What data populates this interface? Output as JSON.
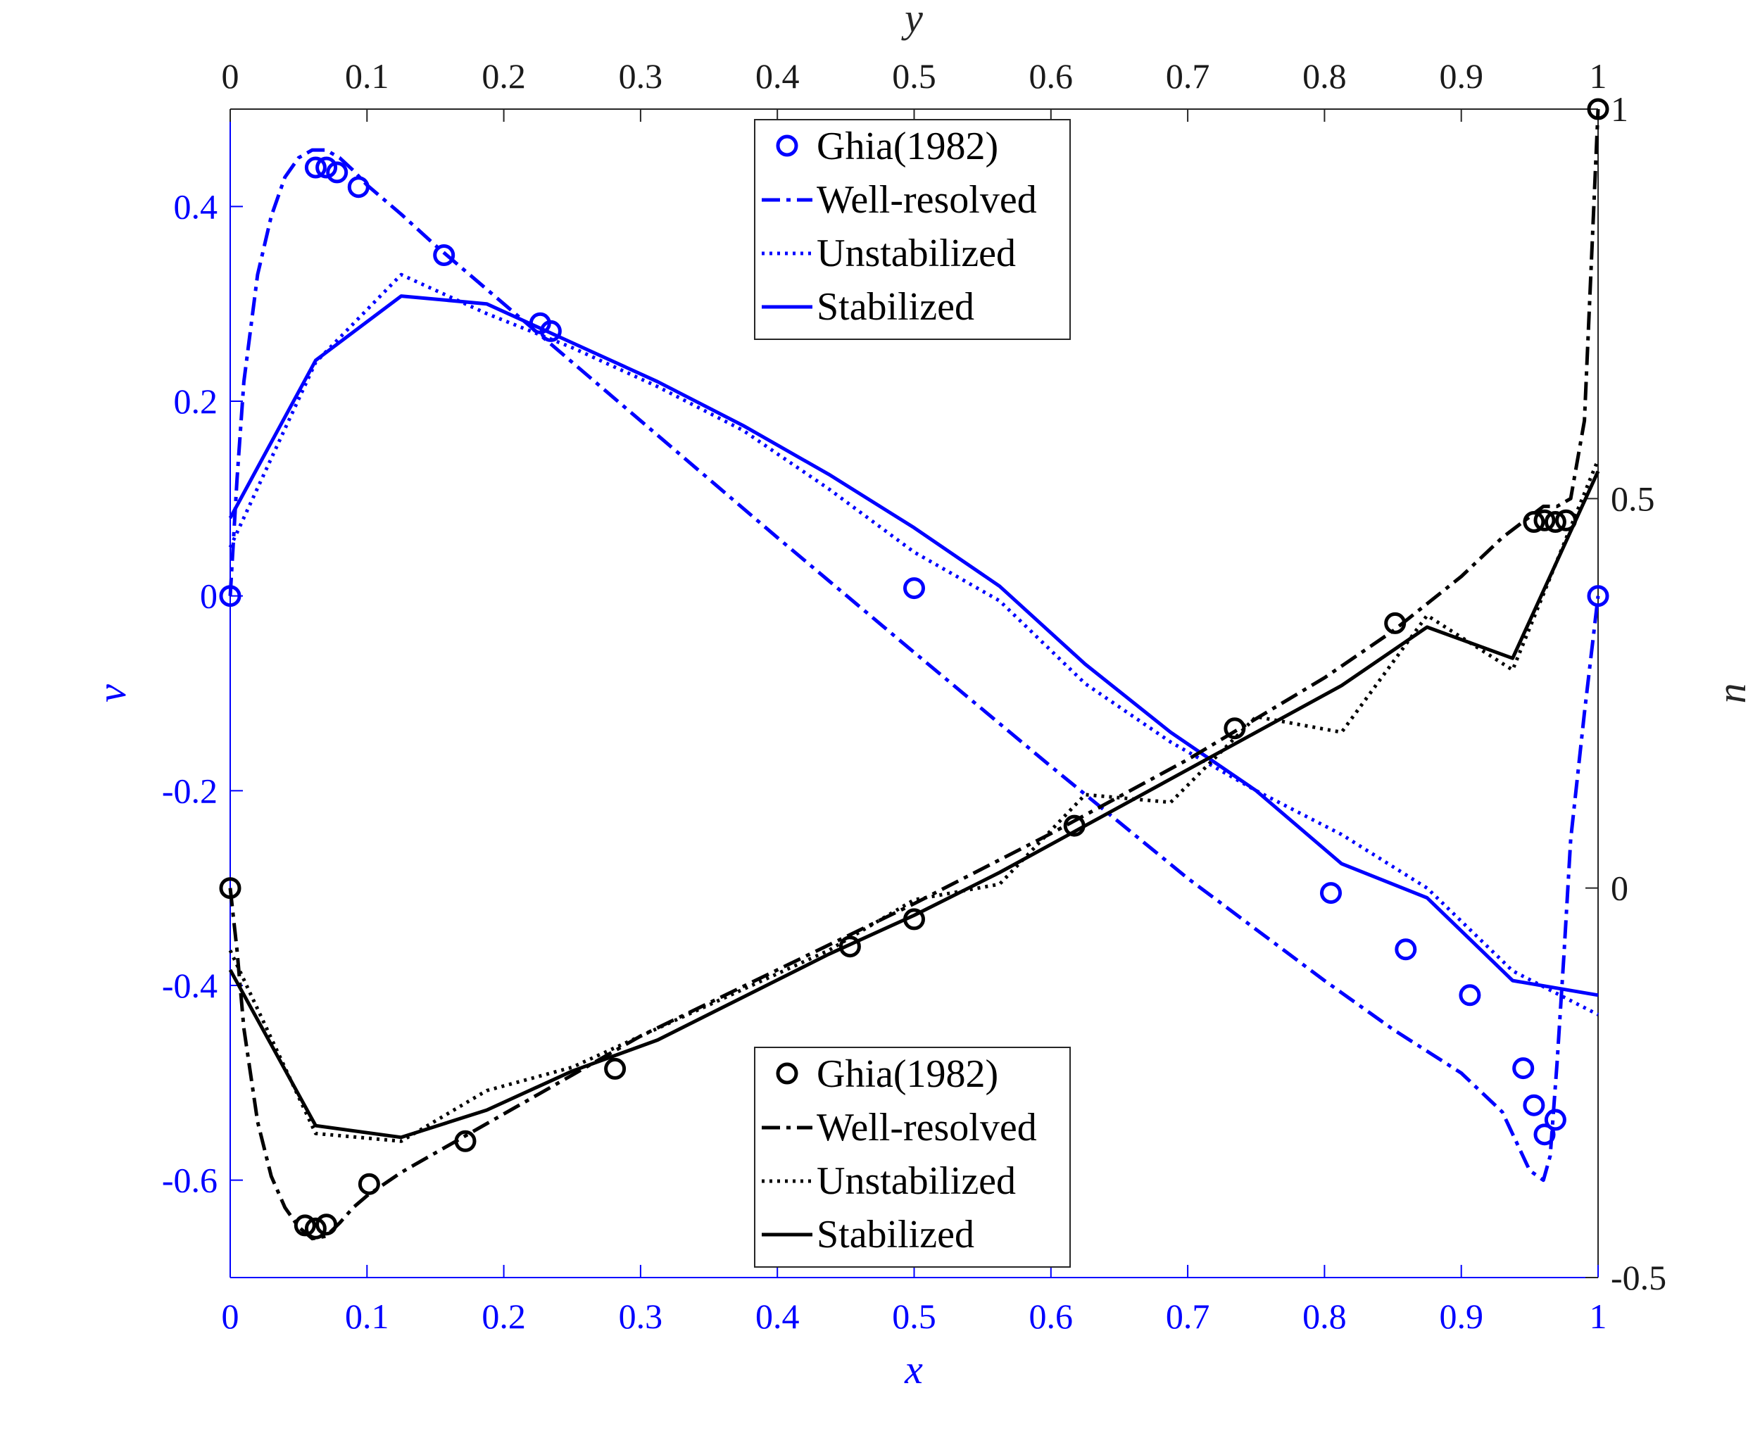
{
  "chart_data": {
    "type": "line",
    "axes": {
      "bottom": {
        "label": "x",
        "lim": [
          0,
          1
        ],
        "ticks": [
          "0",
          "0.1",
          "0.2",
          "0.3",
          "0.4",
          "0.5",
          "0.6",
          "0.7",
          "0.8",
          "0.9",
          "1"
        ],
        "color": "#0000ff"
      },
      "top": {
        "label": "y",
        "lim": [
          0,
          1
        ],
        "ticks": [
          "0",
          "0.1",
          "0.2",
          "0.3",
          "0.4",
          "0.5",
          "0.6",
          "0.7",
          "0.8",
          "0.9",
          "1"
        ],
        "color": "#000000"
      },
      "left": {
        "label": "v",
        "lim": [
          -0.7,
          0.5
        ],
        "tick_values": [
          -0.6,
          -0.4,
          -0.2,
          0,
          0.2,
          0.4
        ],
        "ticks": [
          "-0.6",
          "-0.4",
          "-0.2",
          "0",
          "0.2",
          "0.4"
        ],
        "color": "#0000ff"
      },
      "right": {
        "label": "u",
        "lim": [
          -0.5,
          1
        ],
        "tick_values": [
          -0.5,
          0,
          0.5,
          1
        ],
        "ticks": [
          "-0.5",
          "0",
          "0.5",
          "1"
        ],
        "color": "#000000"
      }
    },
    "grid": false,
    "legends": [
      {
        "placement": "top-center",
        "color": "#0000ff",
        "entries": [
          "Ghia(1982)",
          "Well-resolved",
          "Unstabilized",
          "Stabilized"
        ]
      },
      {
        "placement": "bottom-center",
        "color": "#000000",
        "entries": [
          "Ghia(1982)",
          "Well-resolved",
          "Unstabilized",
          "Stabilized"
        ]
      }
    ],
    "v_series": {
      "axis": "x-v",
      "color": "#0000ff",
      "ghia": {
        "x": [
          0,
          0.0625,
          0.0703,
          0.0781,
          0.0938,
          0.1563,
          0.2266,
          0.2344,
          0.5,
          0.8047,
          0.8594,
          0.9063,
          0.9453,
          0.9531,
          0.9609,
          0.9688,
          1
        ],
        "y": [
          0,
          0.44,
          0.44,
          0.435,
          0.42,
          0.35,
          0.28,
          0.272,
          0.008,
          -0.305,
          -0.363,
          -0.41,
          -0.485,
          -0.523,
          -0.553,
          -0.538,
          0
        ]
      },
      "well_resolved": {
        "x": [
          0,
          0.005,
          0.01,
          0.02,
          0.03,
          0.04,
          0.05,
          0.06,
          0.07,
          0.08,
          0.09,
          0.1,
          0.125,
          0.15,
          0.2,
          0.25,
          0.3,
          0.4,
          0.5,
          0.6,
          0.7,
          0.8,
          0.85,
          0.9,
          0.93,
          0.94,
          0.95,
          0.96,
          0.965,
          0.97,
          0.975,
          0.98,
          0.99,
          1
        ],
        "y": [
          0,
          0.12,
          0.22,
          0.33,
          0.39,
          0.43,
          0.45,
          0.458,
          0.458,
          0.45,
          0.437,
          0.422,
          0.392,
          0.36,
          0.3,
          0.24,
          0.18,
          0.06,
          -0.058,
          -0.175,
          -0.29,
          -0.395,
          -0.445,
          -0.49,
          -0.53,
          -0.56,
          -0.59,
          -0.6,
          -0.575,
          -0.48,
          -0.37,
          -0.25,
          -0.12,
          0
        ]
      },
      "unstabilized": {
        "x": [
          0,
          0.0625,
          0.125,
          0.1875,
          0.25,
          0.3125,
          0.375,
          0.4375,
          0.5,
          0.5625,
          0.625,
          0.6875,
          0.75,
          0.8125,
          0.875,
          0.9375,
          1
        ],
        "y": [
          0.05,
          0.24,
          0.33,
          0.29,
          0.255,
          0.215,
          0.17,
          0.11,
          0.045,
          -0.005,
          -0.09,
          -0.15,
          -0.2,
          -0.245,
          -0.3,
          -0.385,
          -0.43
        ]
      },
      "stabilized": {
        "x": [
          0,
          0.0625,
          0.125,
          0.1875,
          0.25,
          0.3125,
          0.375,
          0.4375,
          0.5,
          0.5625,
          0.625,
          0.6875,
          0.75,
          0.8125,
          0.875,
          0.9375,
          1
        ],
        "y": [
          0.08,
          0.242,
          0.308,
          0.3,
          0.26,
          0.22,
          0.175,
          0.125,
          0.07,
          0.01,
          -0.07,
          -0.14,
          -0.2,
          -0.275,
          -0.31,
          -0.395,
          -0.41
        ]
      }
    },
    "u_series": {
      "axis": "y-u",
      "color": "#000000",
      "ghia": {
        "x": [
          0,
          0.0547,
          0.0625,
          0.0703,
          0.1016,
          0.1719,
          0.2813,
          0.4531,
          0.5,
          0.6172,
          0.7344,
          0.8516,
          0.9531,
          0.9609,
          0.9688,
          0.9766,
          1
        ],
        "y": [
          0,
          -0.433,
          -0.437,
          -0.432,
          -0.38,
          -0.325,
          -0.232,
          -0.075,
          -0.04,
          0.08,
          0.205,
          0.34,
          0.47,
          0.472,
          0.47,
          0.472,
          1
        ]
      },
      "well_resolved": {
        "x": [
          0,
          0.005,
          0.01,
          0.02,
          0.03,
          0.04,
          0.05,
          0.06,
          0.07,
          0.08,
          0.09,
          0.1,
          0.125,
          0.15,
          0.2,
          0.25,
          0.3,
          0.4,
          0.5,
          0.6,
          0.7,
          0.8,
          0.85,
          0.9,
          0.93,
          0.96,
          0.97,
          0.98,
          0.99,
          0.995,
          1
        ],
        "y": [
          0,
          -0.08,
          -0.18,
          -0.3,
          -0.37,
          -0.41,
          -0.435,
          -0.45,
          -0.447,
          -0.43,
          -0.41,
          -0.395,
          -0.365,
          -0.34,
          -0.29,
          -0.24,
          -0.19,
          -0.105,
          -0.02,
          0.07,
          0.165,
          0.27,
          0.33,
          0.4,
          0.45,
          0.49,
          0.49,
          0.5,
          0.6,
          0.8,
          1
        ]
      },
      "unstabilized": {
        "x": [
          0,
          0.0625,
          0.125,
          0.1875,
          0.25,
          0.3125,
          0.375,
          0.4375,
          0.5,
          0.5625,
          0.625,
          0.6875,
          0.75,
          0.8125,
          0.875,
          0.9375,
          1
        ],
        "y": [
          -0.08,
          -0.315,
          -0.325,
          -0.26,
          -0.23,
          -0.18,
          -0.13,
          -0.08,
          -0.015,
          0.005,
          0.12,
          0.11,
          0.22,
          0.2,
          0.35,
          0.28,
          0.55
        ]
      },
      "stabilized": {
        "x": [
          0,
          0.0625,
          0.125,
          0.1875,
          0.25,
          0.3125,
          0.375,
          0.4375,
          0.5,
          0.5625,
          0.625,
          0.6875,
          0.75,
          0.8125,
          0.875,
          0.9375,
          1
        ],
        "y": [
          -0.105,
          -0.305,
          -0.32,
          -0.285,
          -0.235,
          -0.195,
          -0.14,
          -0.085,
          -0.035,
          0.02,
          0.08,
          0.14,
          0.2,
          0.26,
          0.335,
          0.295,
          0.535
        ]
      }
    }
  }
}
